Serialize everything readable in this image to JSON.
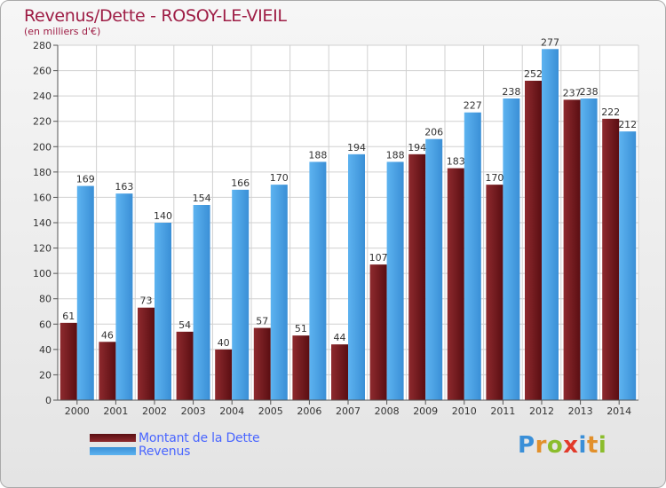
{
  "page": {
    "title": "Revenus/Dette - ROSOY-LE-VIEIL",
    "subtitle": "(en milliers d'€)",
    "logo": {
      "text": "Proxiti",
      "letters": [
        {
          "ch": "P",
          "color": "#3a8fd8"
        },
        {
          "ch": "r",
          "color": "#e2902b"
        },
        {
          "ch": "o",
          "color": "#8bbd2c"
        },
        {
          "ch": "x",
          "color": "#e23a2a"
        },
        {
          "ch": "i",
          "color": "#3a8fd8"
        },
        {
          "ch": "t",
          "color": "#e2902b"
        },
        {
          "ch": "i",
          "color": "#8bbd2c"
        }
      ]
    }
  },
  "chart_data": {
    "type": "bar",
    "title": "Revenus/Dette - ROSOY-LE-VIEIL",
    "subtitle": "(en milliers d'€)",
    "categories": [
      "2000",
      "2001",
      "2002",
      "2003",
      "2004",
      "2005",
      "2006",
      "2007",
      "2008",
      "2009",
      "2010",
      "2011",
      "2012",
      "2013",
      "2014"
    ],
    "series": [
      {
        "name": "Montant de la Dette",
        "color": "#7a1a1e",
        "values": [
          61,
          46,
          73,
          54,
          40,
          57,
          51,
          44,
          107,
          194,
          183,
          170,
          252,
          237,
          222
        ]
      },
      {
        "name": "Revenus",
        "color": "#4aa3e6",
        "values": [
          169,
          163,
          140,
          154,
          166,
          170,
          188,
          194,
          188,
          206,
          227,
          238,
          277,
          238,
          212
        ]
      }
    ],
    "ylim": [
      0,
      280
    ],
    "yticks": [
      0,
      20,
      40,
      60,
      80,
      100,
      120,
      140,
      160,
      180,
      200,
      220,
      240,
      260,
      280
    ],
    "grid": true,
    "legend": "bottom-left"
  }
}
